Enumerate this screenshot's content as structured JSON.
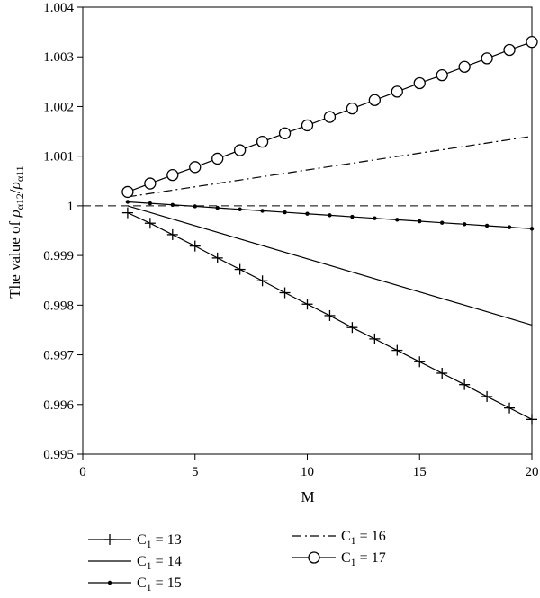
{
  "chart_data": {
    "type": "line",
    "title": "",
    "xlabel": "M",
    "ylabel_prefix": "The value of ",
    "ylabel_rho1": "ρ",
    "ylabel_sub1": "α12",
    "ylabel_slash": "/",
    "ylabel_rho2": "ρ",
    "ylabel_sub2": "α11",
    "xlim": [
      0,
      20
    ],
    "ylim": [
      0.995,
      1.004
    ],
    "xticks": [
      "0",
      "5",
      "10",
      "15",
      "20"
    ],
    "xtick_values": [
      0,
      5,
      10,
      15,
      20
    ],
    "yticks": [
      "0.995",
      "0.996",
      "0.997",
      "0.998",
      "0.999",
      "1",
      "1.001",
      "1.002",
      "1.003",
      "1.004"
    ],
    "ytick_values": [
      0.995,
      0.996,
      0.997,
      0.998,
      0.999,
      1.0,
      1.001,
      1.002,
      1.003,
      1.004
    ],
    "reference_line": {
      "y": 1.0,
      "style": "dashed"
    },
    "grid": false,
    "legend_position": "below",
    "series": [
      {
        "name": "C1 = 13",
        "legend_main": "C",
        "legend_sub": "1",
        "legend_rest": " = 13",
        "style": "solid",
        "marker": "plus",
        "x": [
          2,
          3,
          4,
          5,
          6,
          7,
          8,
          9,
          10,
          11,
          12,
          13,
          14,
          15,
          16,
          17,
          18,
          19,
          20
        ],
        "y": [
          0.99986,
          0.99965,
          0.99942,
          0.99919,
          0.99895,
          0.99872,
          0.99849,
          0.99825,
          0.99802,
          0.99779,
          0.99755,
          0.99732,
          0.99709,
          0.99686,
          0.99663,
          0.9964,
          0.99616,
          0.99593,
          0.9957
        ]
      },
      {
        "name": "C1 = 14",
        "legend_main": "C",
        "legend_sub": "1",
        "legend_rest": " = 14",
        "style": "solid",
        "marker": "none",
        "x": [
          2,
          20
        ],
        "y": [
          1.0,
          0.9976
        ]
      },
      {
        "name": "C1 = 15",
        "legend_main": "C",
        "legend_sub": "1",
        "legend_rest": " = 15",
        "style": "solid",
        "marker": "dot",
        "x": [
          2,
          3,
          4,
          5,
          6,
          7,
          8,
          9,
          10,
          11,
          12,
          13,
          14,
          15,
          16,
          17,
          18,
          19,
          20
        ],
        "y": [
          1.00008,
          1.00005,
          1.00002,
          0.99999,
          0.99996,
          0.99993,
          0.9999,
          0.99987,
          0.99984,
          0.99981,
          0.99978,
          0.99975,
          0.99972,
          0.99969,
          0.99966,
          0.99963,
          0.9996,
          0.99957,
          0.99954
        ]
      },
      {
        "name": "C1 = 16",
        "legend_main": "C",
        "legend_sub": "1",
        "legend_rest": " = 16",
        "style": "dashdot",
        "marker": "none",
        "x": [
          2,
          20
        ],
        "y": [
          1.00018,
          1.0014
        ]
      },
      {
        "name": "C1 = 17",
        "legend_main": "C",
        "legend_sub": "1",
        "legend_rest": " = 17",
        "style": "solid",
        "marker": "circle",
        "x": [
          2,
          3,
          4,
          5,
          6,
          7,
          8,
          9,
          10,
          11,
          12,
          13,
          14,
          15,
          16,
          17,
          18,
          19,
          20
        ],
        "y": [
          1.00028,
          1.00045,
          1.00062,
          1.00078,
          1.00095,
          1.00112,
          1.00129,
          1.00146,
          1.00162,
          1.00179,
          1.00196,
          1.00213,
          1.0023,
          1.00247,
          1.00263,
          1.0028,
          1.00297,
          1.00314,
          1.0033
        ]
      }
    ]
  }
}
